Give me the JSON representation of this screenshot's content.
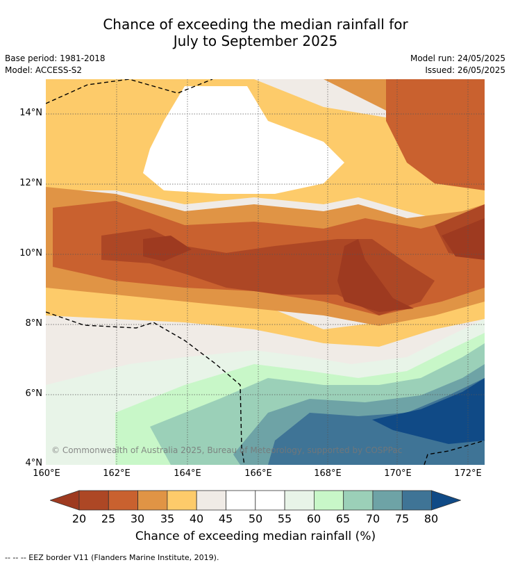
{
  "title_line1": "Chance of exceeding the median rainfall for",
  "title_line2": "July to September 2025",
  "base_period": "Base period: 1981-2018",
  "model": "Model: ACCESS-S2",
  "model_run": "Model run: 24/05/2025",
  "issued": "Issued: 26/05/2025",
  "lat_labels": [
    "14°N",
    "12°N",
    "10°N",
    "8°N",
    "6°N",
    "4°N"
  ],
  "lon_labels": [
    "160°E",
    "162°E",
    "164°E",
    "166°E",
    "168°E",
    "170°E",
    "172°E"
  ],
  "copyright": "© Commonwealth of Australia 2025, Bureau of Meteorology, supported by COSPPac",
  "colorbar": {
    "ticks": [
      "20",
      "25",
      "30",
      "35",
      "40",
      "45",
      "50",
      "55",
      "60",
      "65",
      "70",
      "75",
      "80"
    ],
    "colors": [
      "#9e3a20",
      "#ad4725",
      "#c9612f",
      "#e09445",
      "#fdcb6a",
      "#f0ebe6",
      "#ffffff",
      "#ffffff",
      "#e8f4e8",
      "#c8f7c8",
      "#9bd0b8",
      "#6ea3a6",
      "#3f7496",
      "#104a86"
    ],
    "label": "Chance of exceeding median rainfall (%)"
  },
  "eez_note": "--  --  -- EEZ border V11 (Flanders Marine Institute, 2019)."
}
